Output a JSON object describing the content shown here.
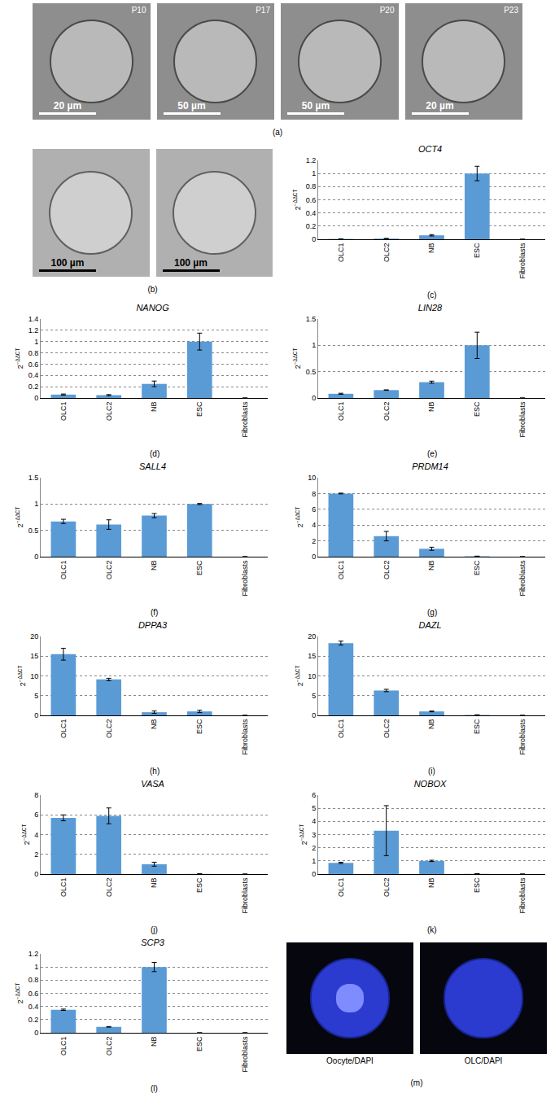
{
  "chart_data": [
    {
      "type": "bar",
      "title": "OCT4",
      "panel": "(c)",
      "ylabel": {
        "base": "2",
        "exponent": "−ΔΔCT"
      },
      "categories": [
        "OLC1",
        "OLC2",
        "NB",
        "ESC",
        "Fibroblasts"
      ],
      "values": [
        0.005,
        0.01,
        0.06,
        1.0,
        0
      ],
      "errors": [
        0.002,
        0.003,
        0.01,
        0.11,
        0
      ],
      "color": "#5b9bd5",
      "ylim": [
        0,
        1.2
      ],
      "yticks": [
        0,
        0.2,
        0.4,
        0.6,
        0.8,
        1,
        1.2
      ],
      "grid": true
    },
    {
      "type": "bar",
      "title": "NANOG",
      "panel": "(d)",
      "ylabel": {
        "base": "2",
        "exponent": "−ΔΔCT"
      },
      "categories": [
        "OLC1",
        "OLC2",
        "NB",
        "ESC",
        "Fibroblasts"
      ],
      "values": [
        0.06,
        0.05,
        0.25,
        1.0,
        0
      ],
      "errors": [
        0.01,
        0.01,
        0.05,
        0.15,
        0
      ],
      "color": "#5b9bd5",
      "ylim": [
        0,
        1.4
      ],
      "yticks": [
        0,
        0.2,
        0.4,
        0.6,
        0.8,
        1,
        1.2,
        1.4
      ],
      "grid": true
    },
    {
      "type": "bar",
      "title": "LIN28",
      "panel": "(e)",
      "ylabel": {
        "base": "2",
        "exponent": "−ΔΔCT"
      },
      "categories": [
        "OLC1",
        "OLC2",
        "NB",
        "ESC",
        "Fibroblasts"
      ],
      "values": [
        0.08,
        0.15,
        0.3,
        1.0,
        0
      ],
      "errors": [
        0.01,
        0.005,
        0.02,
        0.25,
        0
      ],
      "color": "#5b9bd5",
      "ylim": [
        0,
        1.5
      ],
      "yticks": [
        0,
        0.5,
        1,
        1.5
      ],
      "grid": true
    },
    {
      "type": "bar",
      "title": "SALL4",
      "panel": "(f)",
      "ylabel": {
        "base": "2",
        "exponent": "−ΔΔCT"
      },
      "categories": [
        "OLC1",
        "OLC2",
        "NB",
        "ESC",
        "Fibroblasts"
      ],
      "values": [
        0.67,
        0.61,
        0.78,
        1.0,
        0
      ],
      "errors": [
        0.04,
        0.09,
        0.04,
        0.01,
        0
      ],
      "color": "#5b9bd5",
      "ylim": [
        0,
        1.5
      ],
      "yticks": [
        0,
        0.5,
        1,
        1.5
      ],
      "grid": true
    },
    {
      "type": "bar",
      "title": "PRDM14",
      "panel": "(g)",
      "ylabel": {
        "base": "2",
        "exponent": "−ΔΔCT"
      },
      "categories": [
        "OLC1",
        "OLC2",
        "NB",
        "ESC",
        "Fibroblasts"
      ],
      "values": [
        8.0,
        2.6,
        1.0,
        0.05,
        0
      ],
      "errors": [
        0.05,
        0.6,
        0.2,
        0.02,
        0
      ],
      "color": "#5b9bd5",
      "ylim": [
        0,
        10
      ],
      "yticks": [
        0,
        2,
        4,
        6,
        8,
        10
      ],
      "grid": true
    },
    {
      "type": "bar",
      "title": "DPPA3",
      "panel": "(h)",
      "ylabel": {
        "base": "2",
        "exponent": "−ΔΔCT"
      },
      "categories": [
        "OLC1",
        "OLC2",
        "NB",
        "ESC",
        "Fibroblasts"
      ],
      "values": [
        15.5,
        9.1,
        0.8,
        1.0,
        0
      ],
      "errors": [
        1.5,
        0.3,
        0.3,
        0.3,
        0
      ],
      "color": "#5b9bd5",
      "ylim": [
        0,
        20
      ],
      "yticks": [
        0,
        5,
        10,
        15,
        20
      ],
      "grid": true
    },
    {
      "type": "bar",
      "title": "DAZL",
      "panel": "(i)",
      "ylabel": {
        "base": "2",
        "exponent": "−ΔΔCT"
      },
      "categories": [
        "OLC1",
        "OLC2",
        "NB",
        "ESC",
        "Fibroblasts"
      ],
      "values": [
        18.3,
        6.3,
        1.0,
        0.1,
        0
      ],
      "errors": [
        0.5,
        0.3,
        0.1,
        0.05,
        0
      ],
      "color": "#5b9bd5",
      "ylim": [
        0,
        20
      ],
      "yticks": [
        0,
        5,
        10,
        15,
        20
      ],
      "grid": true
    },
    {
      "type": "bar",
      "title": "VASA",
      "panel": "(j)",
      "ylabel": {
        "base": "2",
        "exponent": "−ΔΔCT"
      },
      "categories": [
        "OLC1",
        "OLC2",
        "NB",
        "ESC",
        "Fibroblasts"
      ],
      "values": [
        5.7,
        5.9,
        1.0,
        0.02,
        0
      ],
      "errors": [
        0.3,
        0.8,
        0.2,
        0.01,
        0
      ],
      "color": "#5b9bd5",
      "ylim": [
        0,
        8
      ],
      "yticks": [
        0,
        2,
        4,
        6,
        8
      ],
      "grid": true
    },
    {
      "type": "bar",
      "title": "NOBOX",
      "panel": "(k)",
      "ylabel": {
        "base": "2",
        "exponent": "−ΔΔCT"
      },
      "categories": [
        "OLC1",
        "OLC2",
        "NB",
        "ESC",
        "Fibroblasts"
      ],
      "values": [
        0.85,
        3.3,
        1.0,
        0.02,
        0
      ],
      "errors": [
        0.05,
        1.9,
        0.05,
        0.01,
        0
      ],
      "color": "#5b9bd5",
      "ylim": [
        0,
        6
      ],
      "yticks": [
        0,
        1,
        2,
        3,
        4,
        5,
        6
      ],
      "grid": true
    },
    {
      "type": "bar",
      "title": "SCP3",
      "panel": "(l)",
      "ylabel": {
        "base": "2",
        "exponent": "−ΔΔCT"
      },
      "categories": [
        "OLC1",
        "OLC2",
        "NB",
        "ESC",
        "Fibroblasts"
      ],
      "values": [
        0.35,
        0.09,
        1.0,
        0.0,
        0
      ],
      "errors": [
        0.01,
        0.005,
        0.07,
        0,
        0
      ],
      "color": "#5b9bd5",
      "ylim": [
        0,
        1.2
      ],
      "yticks": [
        0,
        0.2,
        0.4,
        0.6,
        0.8,
        1,
        1.2
      ],
      "grid": true
    }
  ],
  "images": [
    {
      "panel": "(a)",
      "frames": [
        {
          "stage": "P10",
          "scale_bar": "20 µm"
        },
        {
          "stage": "P17",
          "scale_bar": "50 µm"
        },
        {
          "stage": "P20",
          "scale_bar": "50 µm"
        },
        {
          "stage": "P23",
          "scale_bar": "20 µm"
        }
      ]
    },
    {
      "panel": "(b)",
      "frames": [
        {
          "scale_bar": "100 µm"
        },
        {
          "scale_bar": "100 µm"
        }
      ]
    },
    {
      "panel": "(m)",
      "frames": [
        {
          "caption": "Oocyte/DAPI"
        },
        {
          "caption": "OLC/DAPI"
        }
      ]
    }
  ]
}
